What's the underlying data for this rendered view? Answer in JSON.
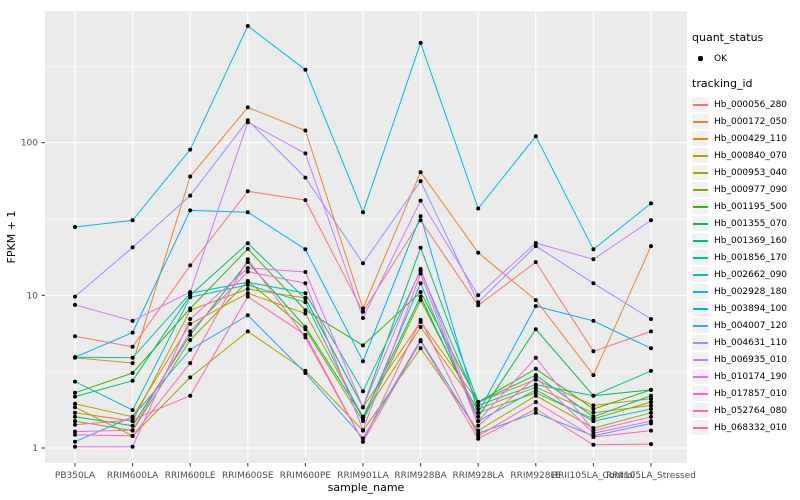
{
  "chart_data": {
    "type": "line",
    "title": "",
    "xlabel": "sample_name",
    "ylabel": "FPKM + 1",
    "y_scale": "log10",
    "y_ticks": [
      "1",
      "10",
      "100"
    ],
    "y_tick_values": [
      1,
      10,
      100
    ],
    "y_minor_values": [
      3.1623,
      31.623,
      316.23
    ],
    "ylim": [
      1,
      730
    ],
    "grid": true,
    "legend_position": "right",
    "panel_bg": "#EBEBEB",
    "grid_color": "#FFFFFF",
    "point_color": "#000000",
    "tick_color": "#333333",
    "tick_label_color": "#4D4D4D",
    "categories": [
      "PB350LA",
      "RRIM600LA",
      "RRIM600LE",
      "RRIM600SE",
      "RRIM600PE",
      "RRIM901LA",
      "RRIM928BA",
      "RRIM928LA",
      "RRIM928LE",
      "RRII105LA_Control",
      "RRII105LA_Stressed"
    ],
    "legend": {
      "quant_status": {
        "title": "quant_status",
        "items": [
          {
            "label": "OK",
            "symbol": "point-icon",
            "color": "#000000"
          }
        ]
      },
      "tracking_id": {
        "title": "tracking_id"
      }
    },
    "series": [
      {
        "name": "Hb_000056_280",
        "color": "#F8766D",
        "values": [
          5.4,
          4.6,
          15.7,
          48,
          42,
          7.8,
          31,
          8.6,
          16.5,
          4.3,
          5.8
        ]
      },
      {
        "name": "Hb_000172_050",
        "color": "#EA8331",
        "values": [
          3.9,
          3.6,
          60,
          170,
          120,
          8.2,
          64,
          19,
          9.3,
          3.0,
          21
        ]
      },
      {
        "name": "Hb_000429_110",
        "color": "#D89000",
        "values": [
          1.7,
          1.5,
          8.0,
          11.0,
          9.6,
          1.85,
          6.7,
          2.0,
          2.8,
          1.9,
          2.1
        ]
      },
      {
        "name": "Hb_000840_070",
        "color": "#C09B00",
        "values": [
          1.95,
          1.6,
          6.5,
          10.3,
          7.6,
          1.6,
          6.2,
          1.8,
          2.5,
          1.7,
          1.9
        ]
      },
      {
        "name": "Hb_000953_040",
        "color": "#A3A500",
        "values": [
          1.85,
          1.2,
          2.9,
          5.8,
          3.2,
          1.3,
          4.5,
          1.3,
          2.2,
          1.35,
          1.7
        ]
      },
      {
        "name": "Hb_000977_090",
        "color": "#7CAE00",
        "values": [
          1.5,
          1.3,
          5.1,
          12.4,
          6.0,
          1.5,
          9.3,
          1.7,
          2.3,
          1.55,
          2.0
        ]
      },
      {
        "name": "Hb_001195_500",
        "color": "#39B600",
        "values": [
          2.3,
          3.1,
          8.2,
          20.1,
          8.0,
          4.7,
          10.5,
          2.0,
          3.3,
          1.8,
          2.4
        ]
      },
      {
        "name": "Hb_001355_070",
        "color": "#00BB4E",
        "values": [
          1.6,
          1.4,
          5.5,
          16.5,
          6.2,
          1.6,
          9.8,
          1.6,
          6.0,
          2.2,
          2.4
        ]
      },
      {
        "name": "Hb_001369_160",
        "color": "#00BF7D",
        "values": [
          2.17,
          2.76,
          10.0,
          21.9,
          9.5,
          1.85,
          20.5,
          2.0,
          3.0,
          1.6,
          2.2
        ]
      },
      {
        "name": "Hb_001856_170",
        "color": "#00C1A3",
        "values": [
          3.93,
          3.9,
          10.3,
          12.2,
          10.3,
          2.35,
          14.5,
          1.9,
          2.6,
          2.2,
          3.2
        ]
      },
      {
        "name": "Hb_002662_090",
        "color": "#00BFC4",
        "values": [
          2.72,
          1.77,
          9.7,
          11.7,
          9.0,
          1.54,
          12.0,
          1.5,
          2.4,
          1.5,
          1.8
        ]
      },
      {
        "name": "Hb_002928_180",
        "color": "#00BAE0",
        "values": [
          28,
          31,
          90,
          580,
          300,
          35,
          450,
          37,
          110,
          20,
          40
        ]
      },
      {
        "name": "Hb_003894_100",
        "color": "#00B0F6",
        "values": [
          3.93,
          5.7,
          36,
          35,
          20,
          3.7,
          33,
          1.7,
          8.5,
          6.8,
          4.5
        ]
      },
      {
        "name": "Hb_004007_120",
        "color": "#35A2FF",
        "values": [
          1.1,
          1.6,
          4.4,
          7.4,
          3.1,
          1.16,
          5.1,
          1.25,
          1.7,
          1.2,
          1.45
        ]
      },
      {
        "name": "Hb_004631_110",
        "color": "#9590FF",
        "values": [
          9.8,
          20.6,
          45,
          140,
          59,
          16.2,
          56,
          9.0,
          21,
          12,
          7.0
        ]
      },
      {
        "name": "Hb_006935_010",
        "color": "#C77CFF",
        "values": [
          8.65,
          6.8,
          10.5,
          136,
          85,
          7.1,
          41.7,
          10,
          22,
          17.2,
          31
        ]
      },
      {
        "name": "Hb_010174_190",
        "color": "#E76BF3",
        "values": [
          1.02,
          1.02,
          7.0,
          15.1,
          14.2,
          1.85,
          14.9,
          1.5,
          3.9,
          1.3,
          1.6
        ]
      },
      {
        "name": "Hb_017857_010",
        "color": "#FA62DB",
        "values": [
          1.28,
          1.31,
          5.8,
          14.3,
          12.0,
          1.31,
          13.9,
          1.4,
          2.9,
          1.25,
          1.5
        ]
      },
      {
        "name": "Hb_052764_080",
        "color": "#FF62BC",
        "values": [
          1.42,
          1.53,
          2.2,
          9.8,
          5.5,
          1.1,
          6.9,
          1.2,
          2.0,
          1.18,
          1.3
        ]
      },
      {
        "name": "Hb_068332_010",
        "color": "#FF6A98",
        "values": [
          1.22,
          1.2,
          3.6,
          17.2,
          5.3,
          1.1,
          5.0,
          1.15,
          1.8,
          1.05,
          1.06
        ]
      }
    ]
  }
}
